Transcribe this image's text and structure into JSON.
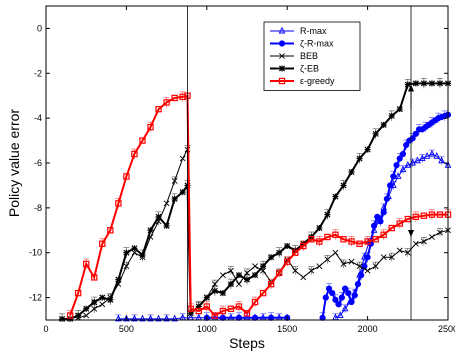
{
  "chart_data": {
    "type": "line",
    "xlabel": "Steps",
    "ylabel": "Policy value error",
    "xlim": [
      0,
      2500
    ],
    "ylim": [
      -13,
      1
    ],
    "xticks": [
      0,
      500,
      1000,
      1500,
      2000,
      2500
    ],
    "yticks": [
      0,
      -2,
      -4,
      -6,
      -8,
      -10,
      -12
    ],
    "legend_position": "top-right",
    "grid": false,
    "annotations": [
      {
        "type": "vline",
        "x": 880
      },
      {
        "type": "vline",
        "x": 2270
      },
      {
        "type": "arrow",
        "x": 2270,
        "y_from": -3.6,
        "y_to": -2.5
      },
      {
        "type": "arrow",
        "x": 2270,
        "y_from": -8.6,
        "y_to": -9.3
      }
    ],
    "series": [
      {
        "name": "R-max",
        "color": "#0000ff",
        "marker": "triangle",
        "line_width": 1,
        "x": [
          450,
          500,
          550,
          600,
          650,
          700,
          750,
          800,
          850,
          900,
          950,
          1000,
          1050,
          1100,
          1150,
          1200,
          1250,
          1300,
          1350,
          1400,
          1450,
          1500,
          1800,
          1830,
          1860,
          1890,
          1920,
          1950,
          1980,
          2010,
          2040,
          2070,
          2100,
          2130,
          2160,
          2190,
          2220,
          2250,
          2280,
          2310,
          2340,
          2370,
          2400,
          2430,
          2460,
          2500
        ],
        "y": [
          -12.95,
          -12.95,
          -12.95,
          -12.95,
          -12.95,
          -12.95,
          -12.95,
          -12.95,
          -12.9,
          -12.9,
          -12.9,
          -12.9,
          -12.9,
          -12.9,
          -12.9,
          -12.9,
          -12.9,
          -12.9,
          -12.9,
          -12.9,
          -12.9,
          -12.9,
          -12.9,
          -12.8,
          -12.5,
          -12.2,
          -11.8,
          -11.0,
          -10.2,
          -9.5,
          -9.0,
          -8.6,
          -8.0,
          -7.5,
          -7.0,
          -6.6,
          -6.3,
          -6.1,
          -6.0,
          -5.9,
          -5.8,
          -5.7,
          -5.6,
          -5.7,
          -5.9,
          -6.1
        ]
      },
      {
        "name": "ζ-R-max",
        "color": "#0000ff",
        "marker": "circle",
        "line_width": 2,
        "x": [
          1000,
          1100,
          1200,
          1300,
          1400,
          1500,
          1720,
          1740,
          1760,
          1780,
          1800,
          1820,
          1840,
          1860,
          1880,
          1900,
          1920,
          1940,
          1960,
          1980,
          2000,
          2020,
          2040,
          2060,
          2080,
          2100,
          2120,
          2140,
          2160,
          2180,
          2200,
          2220,
          2240,
          2260,
          2280,
          2300,
          2320,
          2340,
          2360,
          2380,
          2400,
          2420,
          2440,
          2460,
          2480,
          2500
        ],
        "y": [
          -12.9,
          -12.9,
          -12.9,
          -12.9,
          -12.9,
          -12.9,
          -12.9,
          -12.0,
          -11.6,
          -11.8,
          -12.1,
          -12.3,
          -12.0,
          -11.6,
          -11.8,
          -12.2,
          -11.9,
          -11.4,
          -11.0,
          -10.6,
          -10.2,
          -9.6,
          -8.8,
          -8.4,
          -8.6,
          -8.2,
          -7.6,
          -7.0,
          -6.6,
          -6.1,
          -5.8,
          -5.6,
          -5.2,
          -5.0,
          -4.9,
          -4.7,
          -4.5,
          -4.5,
          -4.4,
          -4.3,
          -4.2,
          -4.1,
          -4.0,
          -3.95,
          -3.9,
          -3.85
        ]
      },
      {
        "name": "BEB",
        "color": "#000000",
        "marker": "x",
        "line_width": 1,
        "x": [
          200,
          250,
          300,
          350,
          400,
          450,
          500,
          550,
          600,
          650,
          700,
          750,
          800,
          850,
          880,
          900,
          950,
          1000,
          1050,
          1100,
          1150,
          1200,
          1250,
          1300,
          1350,
          1400,
          1450,
          1500,
          1550,
          1600,
          1650,
          1700,
          1750,
          1800,
          1850,
          1900,
          1950,
          2000,
          2050,
          2100,
          2150,
          2200,
          2250,
          2300,
          2350,
          2400,
          2450,
          2500
        ],
        "y": [
          -12.9,
          -12.8,
          -12.5,
          -12.3,
          -12.0,
          -11.4,
          -10.6,
          -10.0,
          -10.2,
          -9.3,
          -8.6,
          -7.8,
          -6.8,
          -5.8,
          -5.4,
          -12.7,
          -12.4,
          -12.0,
          -11.4,
          -11.0,
          -10.8,
          -11.4,
          -10.9,
          -10.6,
          -10.8,
          -11.3,
          -10.9,
          -10.3,
          -10.8,
          -11.1,
          -10.8,
          -10.6,
          -10.3,
          -10.0,
          -10.5,
          -10.4,
          -10.6,
          -10.8,
          -10.6,
          -10.2,
          -10.2,
          -9.9,
          -10.0,
          -9.6,
          -9.5,
          -9.3,
          -9.1,
          -9.0
        ]
      },
      {
        "name": "ζ-EB",
        "color": "#000000",
        "marker": "star",
        "line_width": 2,
        "x": [
          100,
          150,
          200,
          250,
          300,
          350,
          400,
          450,
          500,
          550,
          600,
          650,
          700,
          750,
          800,
          850,
          880,
          900,
          950,
          1000,
          1050,
          1100,
          1150,
          1200,
          1250,
          1300,
          1350,
          1400,
          1450,
          1500,
          1550,
          1600,
          1650,
          1700,
          1750,
          1800,
          1850,
          1900,
          1950,
          2000,
          2050,
          2100,
          2150,
          2200,
          2250,
          2300,
          2350,
          2400,
          2450,
          2500
        ],
        "y": [
          -12.95,
          -12.95,
          -12.8,
          -12.5,
          -12.2,
          -12.0,
          -12.1,
          -11.2,
          -10.0,
          -9.8,
          -10.1,
          -9.0,
          -8.4,
          -8.8,
          -7.6,
          -7.3,
          -7.0,
          -12.7,
          -12.4,
          -12.0,
          -11.7,
          -11.8,
          -11.4,
          -11.0,
          -11.2,
          -11.0,
          -10.6,
          -10.2,
          -10.0,
          -9.7,
          -9.9,
          -9.6,
          -9.3,
          -8.9,
          -8.3,
          -7.5,
          -7.0,
          -6.4,
          -5.8,
          -5.4,
          -4.7,
          -4.3,
          -3.9,
          -3.6,
          -2.5,
          -2.45,
          -2.45,
          -2.45,
          -2.45,
          -2.45
        ]
      },
      {
        "name": "ε-greedy",
        "color": "#ff0000",
        "marker": "square",
        "line_width": 2,
        "x": [
          150,
          200,
          250,
          300,
          350,
          400,
          450,
          500,
          550,
          600,
          650,
          700,
          750,
          800,
          850,
          880,
          900,
          950,
          1000,
          1050,
          1100,
          1150,
          1200,
          1250,
          1300,
          1350,
          1400,
          1450,
          1500,
          1550,
          1600,
          1650,
          1700,
          1750,
          1800,
          1850,
          1900,
          1950,
          2000,
          2050,
          2100,
          2150,
          2200,
          2250,
          2300,
          2350,
          2400,
          2450,
          2500
        ],
        "y": [
          -12.8,
          -11.8,
          -10.5,
          -11.1,
          -9.6,
          -9.0,
          -7.8,
          -6.6,
          -5.6,
          -5.0,
          -4.4,
          -3.6,
          -3.3,
          -3.1,
          -3.05,
          -3.0,
          -12.5,
          -12.6,
          -12.4,
          -12.8,
          -12.6,
          -12.5,
          -12.4,
          -12.7,
          -12.2,
          -11.8,
          -11.4,
          -10.9,
          -10.4,
          -10.0,
          -9.7,
          -9.4,
          -9.5,
          -9.3,
          -9.2,
          -9.4,
          -9.5,
          -9.6,
          -9.5,
          -9.4,
          -9.2,
          -8.9,
          -8.7,
          -8.5,
          -8.4,
          -8.35,
          -8.3,
          -8.3,
          -8.3
        ]
      }
    ]
  }
}
